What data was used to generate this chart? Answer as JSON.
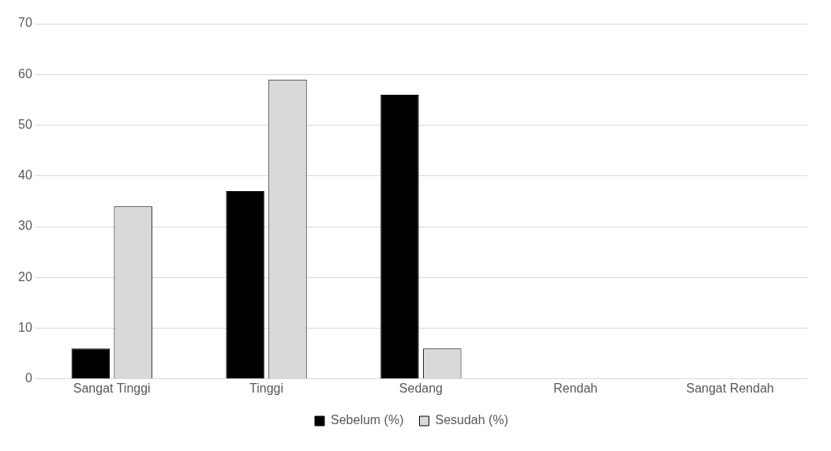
{
  "chart_data": {
    "type": "bar",
    "categories": [
      "Sangat Tinggi",
      "Tinggi",
      "Sedang",
      "Rendah",
      "Sangat Rendah"
    ],
    "series": [
      {
        "name": "Sebelum (%)",
        "color": "#000000",
        "values": [
          6,
          37,
          56,
          0,
          0
        ]
      },
      {
        "name": "Sesudah (%)",
        "color": "#d9d9d9",
        "values": [
          34,
          59,
          6,
          0,
          0
        ]
      }
    ],
    "ylim": [
      0,
      70
    ],
    "yticks": [
      0,
      10,
      20,
      30,
      40,
      50,
      60,
      70
    ],
    "grid": "y",
    "legend": "bottom"
  }
}
